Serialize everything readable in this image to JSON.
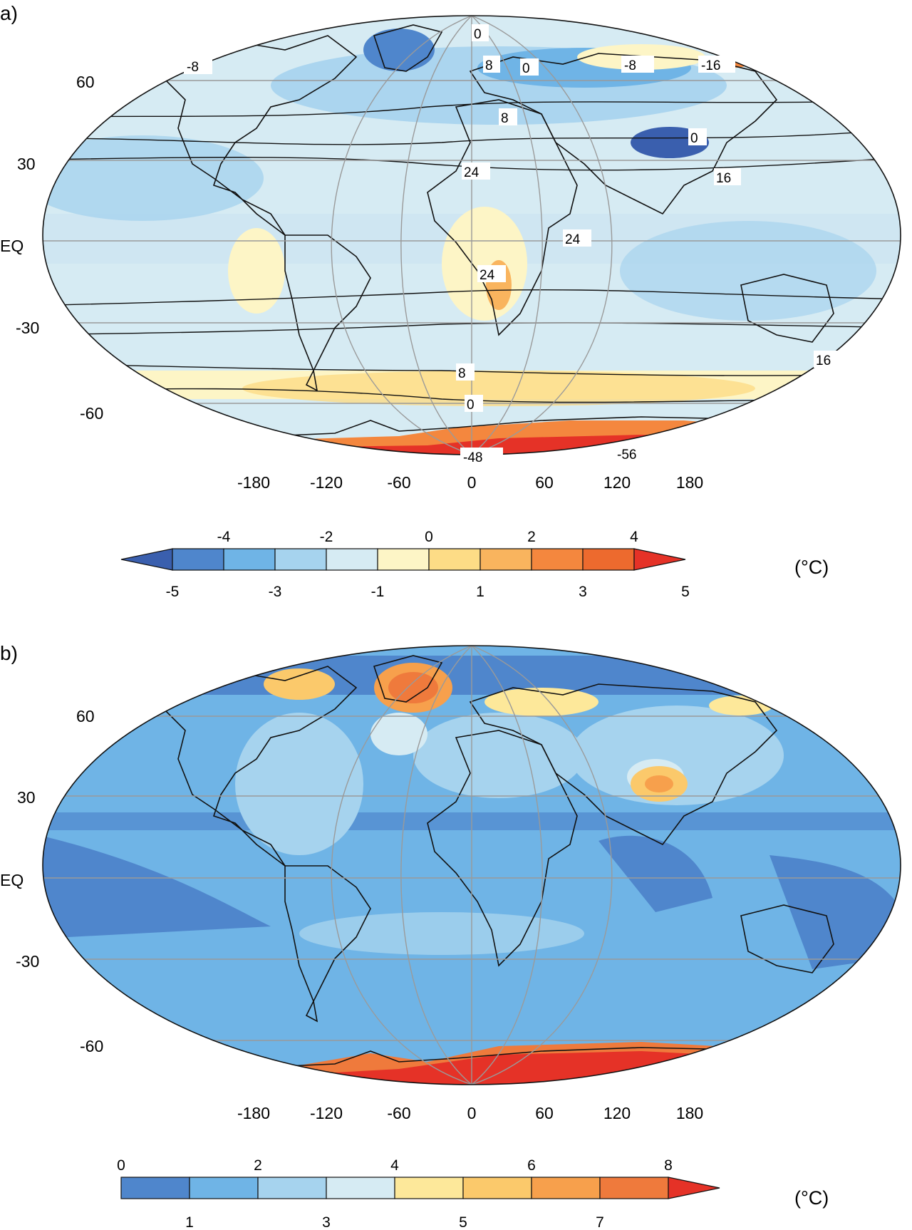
{
  "panels": [
    {
      "label": "a)",
      "lat_labels": [
        "60",
        "30",
        "EQ",
        "-30",
        "-60"
      ],
      "lon_labels": [
        "-180",
        "-120",
        "-60",
        "0",
        "60",
        "120",
        "180"
      ],
      "contour_labels": [
        "0",
        "-8",
        "8",
        "0",
        "-8",
        "-16",
        "8",
        "0",
        "24",
        "16",
        "24",
        "24",
        "16",
        "8",
        "0",
        "-48",
        "-56"
      ],
      "colorbar": {
        "top_labels": [
          "-4",
          "-2",
          "0",
          "2",
          "4"
        ],
        "bottom_labels": [
          "-5",
          "-3",
          "-1",
          "1",
          "3",
          "5"
        ],
        "colors": [
          "#3a5fae",
          "#4f86cc",
          "#6fb4e6",
          "#a6d3ee",
          "#d6ebf3",
          "#fdf5c6",
          "#fddc86",
          "#f9b45e",
          "#f4873e",
          "#ed6a2e",
          "#e53227"
        ],
        "unit": "(°C)"
      }
    },
    {
      "label": "b)",
      "lat_labels": [
        "60",
        "30",
        "EQ",
        "-30",
        "-60"
      ],
      "lon_labels": [
        "-180",
        "-120",
        "-60",
        "0",
        "60",
        "120",
        "180"
      ],
      "colorbar": {
        "top_labels": [
          "0",
          "2",
          "4",
          "6",
          "8"
        ],
        "bottom_labels": [
          "1",
          "3",
          "5",
          "7"
        ],
        "colors": [
          "#4f86cc",
          "#6fb4e6",
          "#a6d3ee",
          "#d6ebf3",
          "#fde89a",
          "#fbc96b",
          "#f7a04c",
          "#ef7a3c",
          "#e53227"
        ],
        "unit": "(°C)"
      }
    }
  ]
}
